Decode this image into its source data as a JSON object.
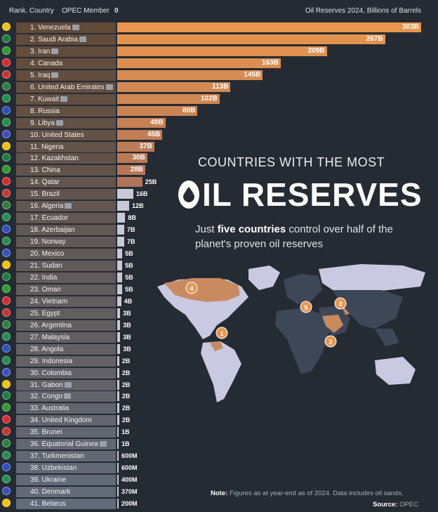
{
  "header": {
    "rank_country": "Rank. Country",
    "opec_member": "OPEC Member",
    "zero": "0",
    "series_label": "Oil Reserves 2024, Billions of Barrels"
  },
  "title_line1": "COUNTRIES WITH THE MOST",
  "title_line2": "IL RESERVES",
  "subtitle_pre": "Just ",
  "subtitle_bold": "five countries",
  "subtitle_post": " control over half of the planet's proven oil reserves",
  "note_label": "Note:",
  "note_text": " Figures as at year-end as of 2024. Data includes oil sands.",
  "source_label": "Source:",
  "source_text": " OPEC",
  "map_markers": [
    "1",
    "2",
    "3",
    "4",
    "5"
  ],
  "colors": {
    "background": "#252b33",
    "bar_orange": "#e8964e",
    "bar_gray": "#c9c9d6",
    "map_highlight": "#c98a60",
    "map_land": "#c9c9e2",
    "map_dark": "#3d4758"
  },
  "chart_data": {
    "type": "bar",
    "orientation": "horizontal",
    "xlabel": "Oil Reserves 2024, Billions of Barrels",
    "xlim": [
      0,
      303
    ],
    "rows": [
      {
        "label": "1. Venezuela",
        "value": 303,
        "display": "303B",
        "opec": true
      },
      {
        "label": "2. Saudi Arabia",
        "value": 267,
        "display": "267B",
        "opec": true
      },
      {
        "label": "3. Iran",
        "value": 209,
        "display": "209B",
        "opec": true
      },
      {
        "label": "4. Canada",
        "value": 163,
        "display": "163B",
        "opec": false
      },
      {
        "label": "5. Iraq",
        "value": 145,
        "display": "145B",
        "opec": true
      },
      {
        "label": "6. United Arab Emirates",
        "value": 113,
        "display": "113B",
        "opec": true
      },
      {
        "label": "7. Kuwait",
        "value": 102,
        "display": "102B",
        "opec": true
      },
      {
        "label": "8. Russia",
        "value": 80,
        "display": "80B",
        "opec": false
      },
      {
        "label": "9. Libya",
        "value": 48,
        "display": "48B",
        "opec": true
      },
      {
        "label": "10. United States",
        "value": 45,
        "display": "45B",
        "opec": false
      },
      {
        "label": "11. Nigeria",
        "value": 37,
        "display": "37B",
        "opec": false
      },
      {
        "label": "12. Kazakhstan",
        "value": 30,
        "display": "30B",
        "opec": false
      },
      {
        "label": "13. China",
        "value": 28,
        "display": "28B",
        "opec": false
      },
      {
        "label": "14. Qatar",
        "value": 25,
        "display": "25B",
        "opec": false
      },
      {
        "label": "15. Brazil",
        "value": 16,
        "display": "16B",
        "opec": false
      },
      {
        "label": "16. Algeria",
        "value": 12,
        "display": "12B",
        "opec": true
      },
      {
        "label": "17. Ecuador",
        "value": 8,
        "display": "8B",
        "opec": false
      },
      {
        "label": "18. Azerbaijan",
        "value": 7,
        "display": "7B",
        "opec": false
      },
      {
        "label": "19. Norway",
        "value": 7,
        "display": "7B",
        "opec": false
      },
      {
        "label": "20. Mexico",
        "value": 5,
        "display": "5B",
        "opec": false
      },
      {
        "label": "21. Sudan",
        "value": 5,
        "display": "5B",
        "opec": false
      },
      {
        "label": "22. India",
        "value": 5,
        "display": "5B",
        "opec": false
      },
      {
        "label": "23. Oman",
        "value": 5,
        "display": "5B",
        "opec": false
      },
      {
        "label": "24. Vietnam",
        "value": 4,
        "display": "4B",
        "opec": false
      },
      {
        "label": "25. Egypt",
        "value": 3,
        "display": "3B",
        "opec": false
      },
      {
        "label": "26. Argentina",
        "value": 3,
        "display": "3B",
        "opec": false
      },
      {
        "label": "27. Malaysia",
        "value": 3,
        "display": "3B",
        "opec": false
      },
      {
        "label": "28. Angola",
        "value": 3,
        "display": "3B",
        "opec": false
      },
      {
        "label": "29. Indonesia",
        "value": 2,
        "display": "2B",
        "opec": false
      },
      {
        "label": "30. Colombia",
        "value": 2,
        "display": "2B",
        "opec": false
      },
      {
        "label": "31. Gabon",
        "value": 2,
        "display": "2B",
        "opec": true
      },
      {
        "label": "32. Congo",
        "value": 2,
        "display": "2B",
        "opec": true
      },
      {
        "label": "33. Australia",
        "value": 2,
        "display": "2B",
        "opec": false
      },
      {
        "label": "34. United Kingdom",
        "value": 2,
        "display": "2B",
        "opec": false
      },
      {
        "label": "35. Brunei",
        "value": 1,
        "display": "1B",
        "opec": false
      },
      {
        "label": "36. Equatorial Guinea",
        "value": 1,
        "display": "1B",
        "opec": true
      },
      {
        "label": "37. Turkmenistan",
        "value": 0.6,
        "display": "600M",
        "opec": false
      },
      {
        "label": "38. Uzbekistan",
        "value": 0.6,
        "display": "600M",
        "opec": false
      },
      {
        "label": "39. Ukraine",
        "value": 0.4,
        "display": "400M",
        "opec": false
      },
      {
        "label": "40. Denmark",
        "value": 0.37,
        "display": "370M",
        "opec": false
      },
      {
        "label": "41. Belarus",
        "value": 0.2,
        "display": "200M",
        "opec": false
      }
    ]
  }
}
